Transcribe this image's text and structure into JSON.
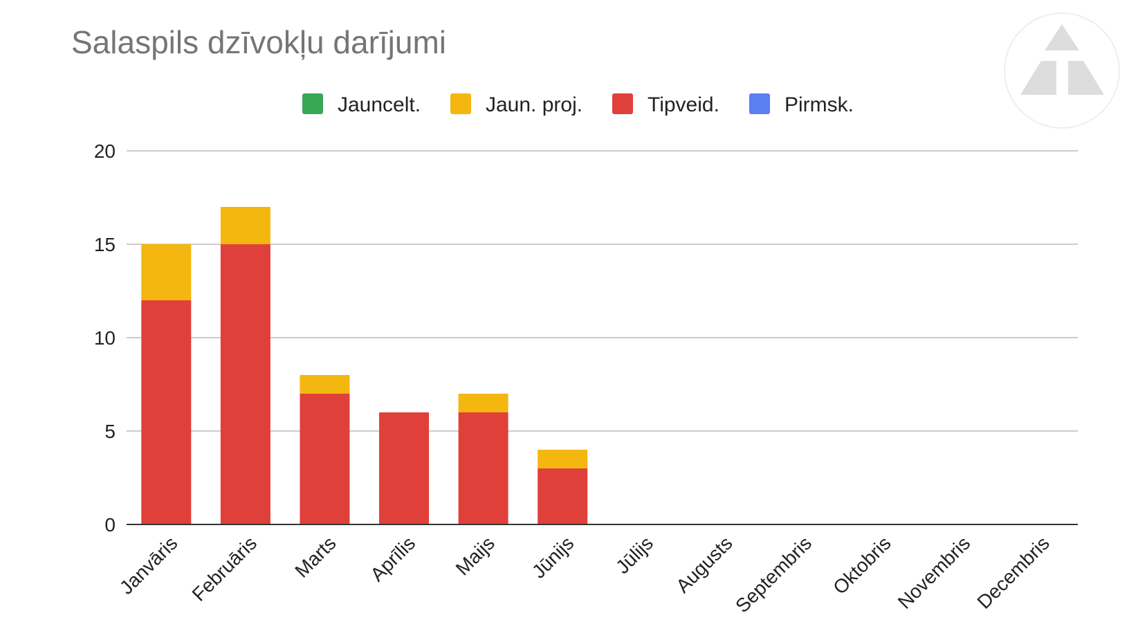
{
  "colors": {
    "Jauncelt.": "#3aa757",
    "Jaun. proj.": "#f4b70f",
    "Tipveid.": "#e0403a",
    "Pirmsk.": "#5b7ff2",
    "grid": "#cccccc",
    "axis": "#333333",
    "logo": "#dddddd"
  },
  "logo_icon": "triangle-logo-icon",
  "chart_data": {
    "type": "bar",
    "stacked": true,
    "title": "Salaspils dzīvokļu darījumi",
    "xlabel": "",
    "ylabel": "",
    "ylim": [
      0,
      20
    ],
    "yticks": [
      0,
      5,
      10,
      15,
      20
    ],
    "grid": true,
    "legend_position": "top",
    "categories": [
      "Janvāris",
      "Februāris",
      "Marts",
      "Aprīlis",
      "Maijs",
      "Jūnijs",
      "Jūlijs",
      "Augusts",
      "Septembris",
      "Oktobris",
      "Novembris",
      "Decembris"
    ],
    "series": [
      {
        "name": "Jauncelt.",
        "values": [
          0,
          0,
          0,
          0,
          0,
          0,
          0,
          0,
          0,
          0,
          0,
          0
        ]
      },
      {
        "name": "Jaun. proj.",
        "values": [
          3,
          2,
          1,
          0,
          1,
          1,
          0,
          0,
          0,
          0,
          0,
          0
        ]
      },
      {
        "name": "Tipveid.",
        "values": [
          12,
          15,
          7,
          6,
          6,
          3,
          0,
          0,
          0,
          0,
          0,
          0
        ]
      },
      {
        "name": "Pirmsk.",
        "values": [
          0,
          0,
          0,
          0,
          0,
          0,
          0,
          0,
          0,
          0,
          0,
          0
        ]
      }
    ]
  }
}
